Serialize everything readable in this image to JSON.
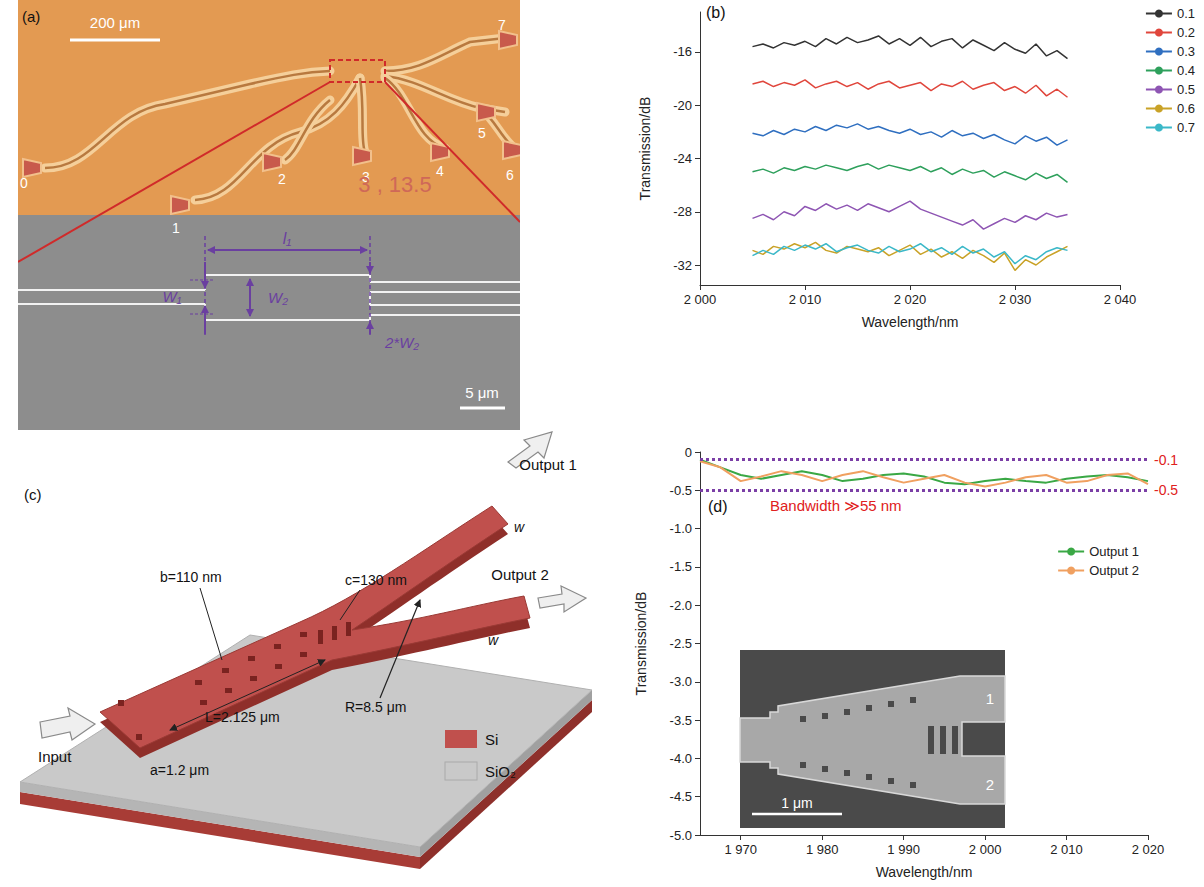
{
  "panels": {
    "a": {
      "label": "(a)",
      "top_image": {
        "scale_bar": "200 μm",
        "port_labels": [
          "0",
          "1",
          "2",
          "3",
          "4",
          "5",
          "6",
          "7"
        ],
        "chip_label": "3 , 13.5"
      },
      "bottom_image": {
        "scale_bar": "5 μm",
        "dimensions": [
          "l₁",
          "W₁",
          "W₂",
          "2*W₂"
        ]
      }
    },
    "c": {
      "label": "(c)",
      "ports": [
        "Input",
        "Output 1",
        "Output 2"
      ],
      "dimensions": [
        "a=1.2 μm",
        "b=110 nm",
        "L=2.125 μm",
        "c=130 nm",
        "R=8.5 μm",
        "w",
        "w"
      ],
      "materials": [
        {
          "name": "Si",
          "color": "#c0504d"
        },
        {
          "name": "SiO₂",
          "color": "#c9c9c9"
        }
      ]
    }
  },
  "chart_data": [
    {
      "type": "line",
      "annotations": [
        "(b)"
      ],
      "x_label": "Wavelength/nm",
      "y_label": "Transmission/dB",
      "x": [
        2005,
        2006,
        2007,
        2008,
        2009,
        2010,
        2011,
        2012,
        2013,
        2014,
        2015,
        2016,
        2017,
        2018,
        2019,
        2020,
        2021,
        2022,
        2023,
        2024,
        2025,
        2026,
        2027,
        2028,
        2029,
        2030,
        2031,
        2032,
        2033,
        2034,
        2035
      ],
      "series": [
        {
          "name": "0.1",
          "color": "#333333",
          "values": [
            -15.6,
            -15.4,
            -15.7,
            -15.3,
            -15.5,
            -15.2,
            -15.6,
            -15.0,
            -15.4,
            -14.9,
            -15.3,
            -15.1,
            -14.8,
            -15.4,
            -15.0,
            -15.5,
            -14.9,
            -15.6,
            -15.2,
            -15.0,
            -15.7,
            -15.1,
            -15.5,
            -15.9,
            -15.3,
            -15.8,
            -16.1,
            -15.4,
            -16.3,
            -15.9,
            -16.5
          ]
        },
        {
          "name": "0.2",
          "color": "#e0463c",
          "values": [
            -18.4,
            -18.2,
            -18.6,
            -18.3,
            -18.5,
            -18.1,
            -18.7,
            -18.4,
            -18.2,
            -18.6,
            -18.3,
            -18.8,
            -18.4,
            -18.2,
            -18.7,
            -18.5,
            -18.3,
            -18.9,
            -18.4,
            -18.6,
            -18.2,
            -18.8,
            -18.5,
            -18.3,
            -18.9,
            -18.6,
            -19.1,
            -18.5,
            -19.3,
            -18.8,
            -19.4
          ]
        },
        {
          "name": "0.3",
          "color": "#2f6fc0",
          "values": [
            -22.1,
            -22.3,
            -21.9,
            -22.2,
            -21.8,
            -22.0,
            -21.6,
            -21.9,
            -21.5,
            -21.7,
            -21.4,
            -21.8,
            -21.6,
            -21.9,
            -22.1,
            -21.8,
            -22.2,
            -22.0,
            -22.4,
            -21.9,
            -22.3,
            -22.1,
            -22.5,
            -22.2,
            -22.6,
            -22.9,
            -22.3,
            -22.7,
            -22.4,
            -23.0,
            -22.6
          ]
        },
        {
          "name": "0.4",
          "color": "#2ea05c",
          "values": [
            -25.0,
            -24.8,
            -25.1,
            -24.7,
            -24.9,
            -24.6,
            -24.8,
            -24.5,
            -24.7,
            -24.9,
            -24.6,
            -24.4,
            -24.8,
            -24.5,
            -24.7,
            -24.9,
            -24.6,
            -25.0,
            -24.7,
            -25.2,
            -24.8,
            -25.1,
            -24.9,
            -25.4,
            -25.0,
            -25.3,
            -25.6,
            -25.1,
            -25.5,
            -25.2,
            -25.8
          ]
        },
        {
          "name": "0.5",
          "color": "#8e55b3",
          "values": [
            -28.5,
            -28.2,
            -28.6,
            -28.0,
            -28.3,
            -27.6,
            -27.9,
            -27.4,
            -27.8,
            -27.5,
            -27.9,
            -27.4,
            -27.7,
            -28.0,
            -27.6,
            -27.2,
            -27.8,
            -28.1,
            -28.4,
            -28.7,
            -29.0,
            -28.6,
            -29.3,
            -28.9,
            -28.5,
            -28.8,
            -28.3,
            -28.6,
            -28.1,
            -28.4,
            -28.2
          ]
        },
        {
          "name": "0.6",
          "color": "#c9a227",
          "values": [
            -30.9,
            -31.2,
            -30.6,
            -30.8,
            -30.4,
            -30.7,
            -30.3,
            -30.9,
            -31.1,
            -30.6,
            -30.8,
            -31.0,
            -30.7,
            -31.3,
            -30.9,
            -30.5,
            -31.2,
            -30.8,
            -31.4,
            -31.0,
            -31.5,
            -30.9,
            -31.3,
            -31.8,
            -31.1,
            -32.4,
            -31.6,
            -32.0,
            -31.4,
            -31.0,
            -30.6
          ]
        },
        {
          "name": "0.7",
          "color": "#3bb8c8",
          "values": [
            -31.3,
            -30.9,
            -31.2,
            -30.6,
            -30.9,
            -30.5,
            -30.8,
            -30.4,
            -31.0,
            -30.7,
            -30.5,
            -30.9,
            -31.1,
            -30.6,
            -31.0,
            -30.8,
            -30.4,
            -31.0,
            -30.7,
            -31.2,
            -30.6,
            -31.1,
            -30.8,
            -31.4,
            -31.0,
            -31.9,
            -31.3,
            -31.6,
            -31.0,
            -30.7,
            -30.9
          ]
        }
      ],
      "xlim": [
        2000,
        2040
      ],
      "xticks": [
        {
          "value": 2000,
          "label": "2 000"
        },
        {
          "value": 2010,
          "label": "2 010"
        },
        {
          "value": 2020,
          "label": "2 020"
        },
        {
          "value": 2030,
          "label": "2 030"
        },
        {
          "value": 2040,
          "label": "2 040"
        }
      ],
      "ylim": [
        -33.5,
        -13
      ],
      "yticks": [
        -32,
        -28,
        -24,
        -20,
        -16
      ],
      "grid": false,
      "legend": "top right"
    },
    {
      "type": "line",
      "annotations": [
        "(d)",
        "Bandwidth ≫55 nm"
      ],
      "x_label": "Wavelength/nm",
      "y_label": "Transmission/dB",
      "x": [
        1965,
        1967.5,
        1970,
        1972.5,
        1975,
        1977.5,
        1980,
        1982.5,
        1985,
        1987.5,
        1990,
        1992.5,
        1995,
        1997.5,
        2000,
        2002.5,
        2005,
        2007.5,
        2010,
        2012.5,
        2015,
        2017.5,
        2020
      ],
      "series": [
        {
          "name": "Output 1",
          "color": "#3aa845",
          "values": [
            -0.1,
            -0.2,
            -0.3,
            -0.35,
            -0.3,
            -0.25,
            -0.3,
            -0.38,
            -0.35,
            -0.3,
            -0.28,
            -0.32,
            -0.4,
            -0.42,
            -0.38,
            -0.35,
            -0.38,
            -0.4,
            -0.35,
            -0.32,
            -0.3,
            -0.33,
            -0.38
          ]
        },
        {
          "name": "Output 2",
          "color": "#f0a060",
          "values": [
            -0.12,
            -0.2,
            -0.38,
            -0.32,
            -0.25,
            -0.3,
            -0.38,
            -0.3,
            -0.25,
            -0.33,
            -0.4,
            -0.35,
            -0.3,
            -0.4,
            -0.45,
            -0.4,
            -0.33,
            -0.3,
            -0.4,
            -0.38,
            -0.3,
            -0.28,
            -0.42
          ]
        }
      ],
      "reference_lines": [
        {
          "value": -0.1,
          "label": "-0.1"
        },
        {
          "value": -0.5,
          "label": "-0.5"
        }
      ],
      "inset": {
        "scale_bar": "1 μm",
        "port_labels": [
          "1",
          "2"
        ]
      },
      "xlim": [
        1965,
        2020
      ],
      "xticks": [
        {
          "value": 1970,
          "label": "1 970"
        },
        {
          "value": 1980,
          "label": "1 980"
        },
        {
          "value": 1990,
          "label": "1 990"
        },
        {
          "value": 2000,
          "label": "2 000"
        },
        {
          "value": 2010,
          "label": "2 010"
        },
        {
          "value": 2020,
          "label": "2 020"
        }
      ],
      "ylim": [
        -5,
        0
      ],
      "yticks": [
        {
          "value": -5,
          "label": "-5.0"
        },
        -4.5,
        {
          "value": -4,
          "label": "-4.0"
        },
        -3.5,
        {
          "value": -3,
          "label": "-3.0"
        },
        -2.5,
        {
          "value": -2,
          "label": "-2.0"
        },
        -1.5,
        {
          "value": -1,
          "label": "-1.0"
        },
        -0.5,
        0
      ],
      "grid": false,
      "legend": "right"
    }
  ]
}
